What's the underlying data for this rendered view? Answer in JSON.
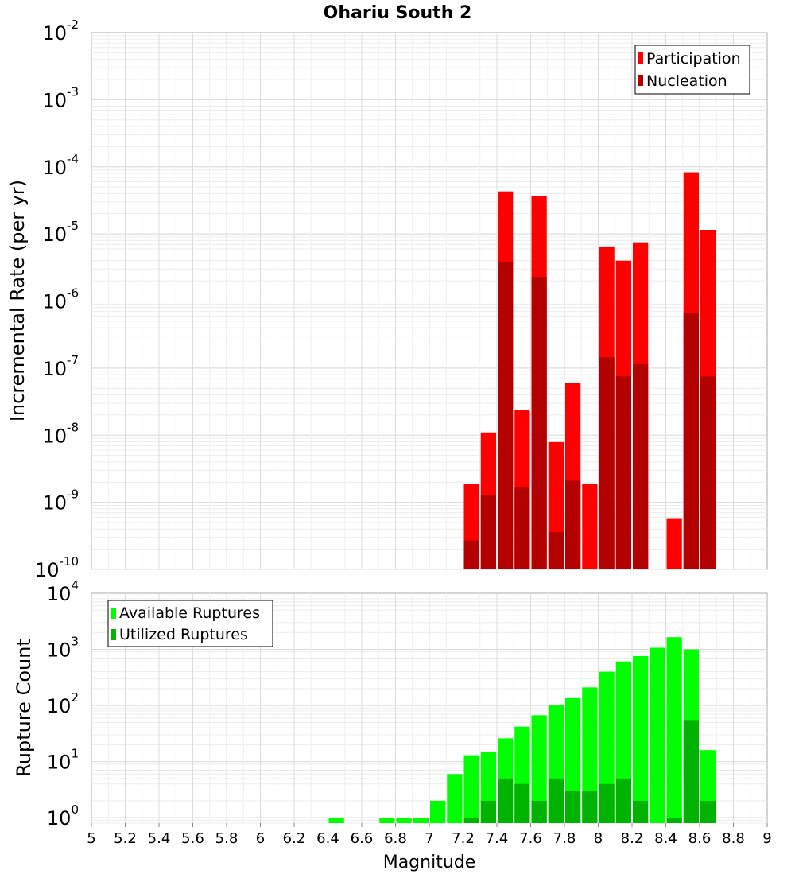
{
  "chart_data": [
    {
      "type": "bar",
      "title": "Ohariu South 2",
      "ylabel": "Incremental Rate (per yr)",
      "xlabel": "",
      "yscale": "log",
      "ylim": [
        1e-10,
        0.01
      ],
      "xlim": [
        5,
        9
      ],
      "bar_width": 0.1,
      "y_tick_exponents": [
        "-10",
        "-9",
        "-8",
        "-7",
        "-6",
        "-5",
        "-4",
        "-3",
        "-2"
      ],
      "grid": true,
      "legend_position": "top-right",
      "series": [
        {
          "name": "Participation",
          "color": "#ff0000",
          "points": [
            {
              "x": 7.25,
              "y": 1.9e-09
            },
            {
              "x": 7.35,
              "y": 1.1e-08
            },
            {
              "x": 7.45,
              "y": 4.3e-05
            },
            {
              "x": 7.55,
              "y": 2.4e-08
            },
            {
              "x": 7.65,
              "y": 3.7e-05
            },
            {
              "x": 7.75,
              "y": 7.9e-09
            },
            {
              "x": 7.85,
              "y": 6e-08
            },
            {
              "x": 7.95,
              "y": 1.9e-09
            },
            {
              "x": 8.05,
              "y": 6.5e-06
            },
            {
              "x": 8.15,
              "y": 4e-06
            },
            {
              "x": 8.25,
              "y": 7.5e-06
            },
            {
              "x": 8.45,
              "y": 5.8e-10
            },
            {
              "x": 8.55,
              "y": 8.3e-05
            },
            {
              "x": 8.65,
              "y": 1.15e-05
            }
          ]
        },
        {
          "name": "Nucleation",
          "color": "#b30000",
          "points": [
            {
              "x": 7.25,
              "y": 2.7e-10
            },
            {
              "x": 7.35,
              "y": 1.3e-09
            },
            {
              "x": 7.45,
              "y": 3.8e-06
            },
            {
              "x": 7.55,
              "y": 1.7e-09
            },
            {
              "x": 7.65,
              "y": 2.3e-06
            },
            {
              "x": 7.75,
              "y": 3.6e-10
            },
            {
              "x": 7.85,
              "y": 2.1e-09
            },
            {
              "x": 8.05,
              "y": 1.45e-07
            },
            {
              "x": 8.15,
              "y": 7.6e-08
            },
            {
              "x": 8.25,
              "y": 1.15e-07
            },
            {
              "x": 8.55,
              "y": 6.7e-07
            },
            {
              "x": 8.65,
              "y": 7.5e-08
            }
          ]
        }
      ]
    },
    {
      "type": "bar",
      "title": "",
      "ylabel": "Rupture Count",
      "xlabel": "Magnitude",
      "yscale": "log",
      "ylim": [
        0.8,
        10000
      ],
      "xlim": [
        5,
        9
      ],
      "bar_width": 0.1,
      "y_tick_exponents": [
        "0",
        "1",
        "2",
        "3",
        "4"
      ],
      "x_ticks": [
        "5",
        "5.2",
        "5.4",
        "5.6",
        "5.8",
        "6",
        "6.2",
        "6.4",
        "6.6",
        "6.8",
        "7",
        "7.2",
        "7.4",
        "7.6",
        "7.8",
        "8",
        "8.2",
        "8.4",
        "8.6",
        "8.8",
        "9"
      ],
      "grid": true,
      "legend_position": "top-left",
      "series": [
        {
          "name": "Available Ruptures",
          "color": "#00ff00",
          "points": [
            {
              "x": 6.45,
              "y": 1
            },
            {
              "x": 6.75,
              "y": 1
            },
            {
              "x": 6.85,
              "y": 1
            },
            {
              "x": 6.95,
              "y": 1
            },
            {
              "x": 7.05,
              "y": 2
            },
            {
              "x": 7.15,
              "y": 6
            },
            {
              "x": 7.25,
              "y": 13
            },
            {
              "x": 7.35,
              "y": 15
            },
            {
              "x": 7.45,
              "y": 26
            },
            {
              "x": 7.55,
              "y": 42
            },
            {
              "x": 7.65,
              "y": 67
            },
            {
              "x": 7.75,
              "y": 100
            },
            {
              "x": 7.85,
              "y": 135
            },
            {
              "x": 7.95,
              "y": 210
            },
            {
              "x": 8.05,
              "y": 400
            },
            {
              "x": 8.15,
              "y": 610
            },
            {
              "x": 8.25,
              "y": 760
            },
            {
              "x": 8.35,
              "y": 1070
            },
            {
              "x": 8.45,
              "y": 1650
            },
            {
              "x": 8.55,
              "y": 1000
            },
            {
              "x": 8.65,
              "y": 16
            }
          ]
        },
        {
          "name": "Utilized Ruptures",
          "color": "#00b300",
          "points": [
            {
              "x": 7.25,
              "y": 1
            },
            {
              "x": 7.35,
              "y": 2
            },
            {
              "x": 7.45,
              "y": 5
            },
            {
              "x": 7.55,
              "y": 4
            },
            {
              "x": 7.65,
              "y": 2
            },
            {
              "x": 7.75,
              "y": 5
            },
            {
              "x": 7.85,
              "y": 3
            },
            {
              "x": 7.95,
              "y": 3
            },
            {
              "x": 8.05,
              "y": 4
            },
            {
              "x": 8.15,
              "y": 5
            },
            {
              "x": 8.25,
              "y": 2
            },
            {
              "x": 8.45,
              "y": 1
            },
            {
              "x": 8.55,
              "y": 55
            },
            {
              "x": 8.65,
              "y": 2
            }
          ]
        }
      ]
    }
  ]
}
